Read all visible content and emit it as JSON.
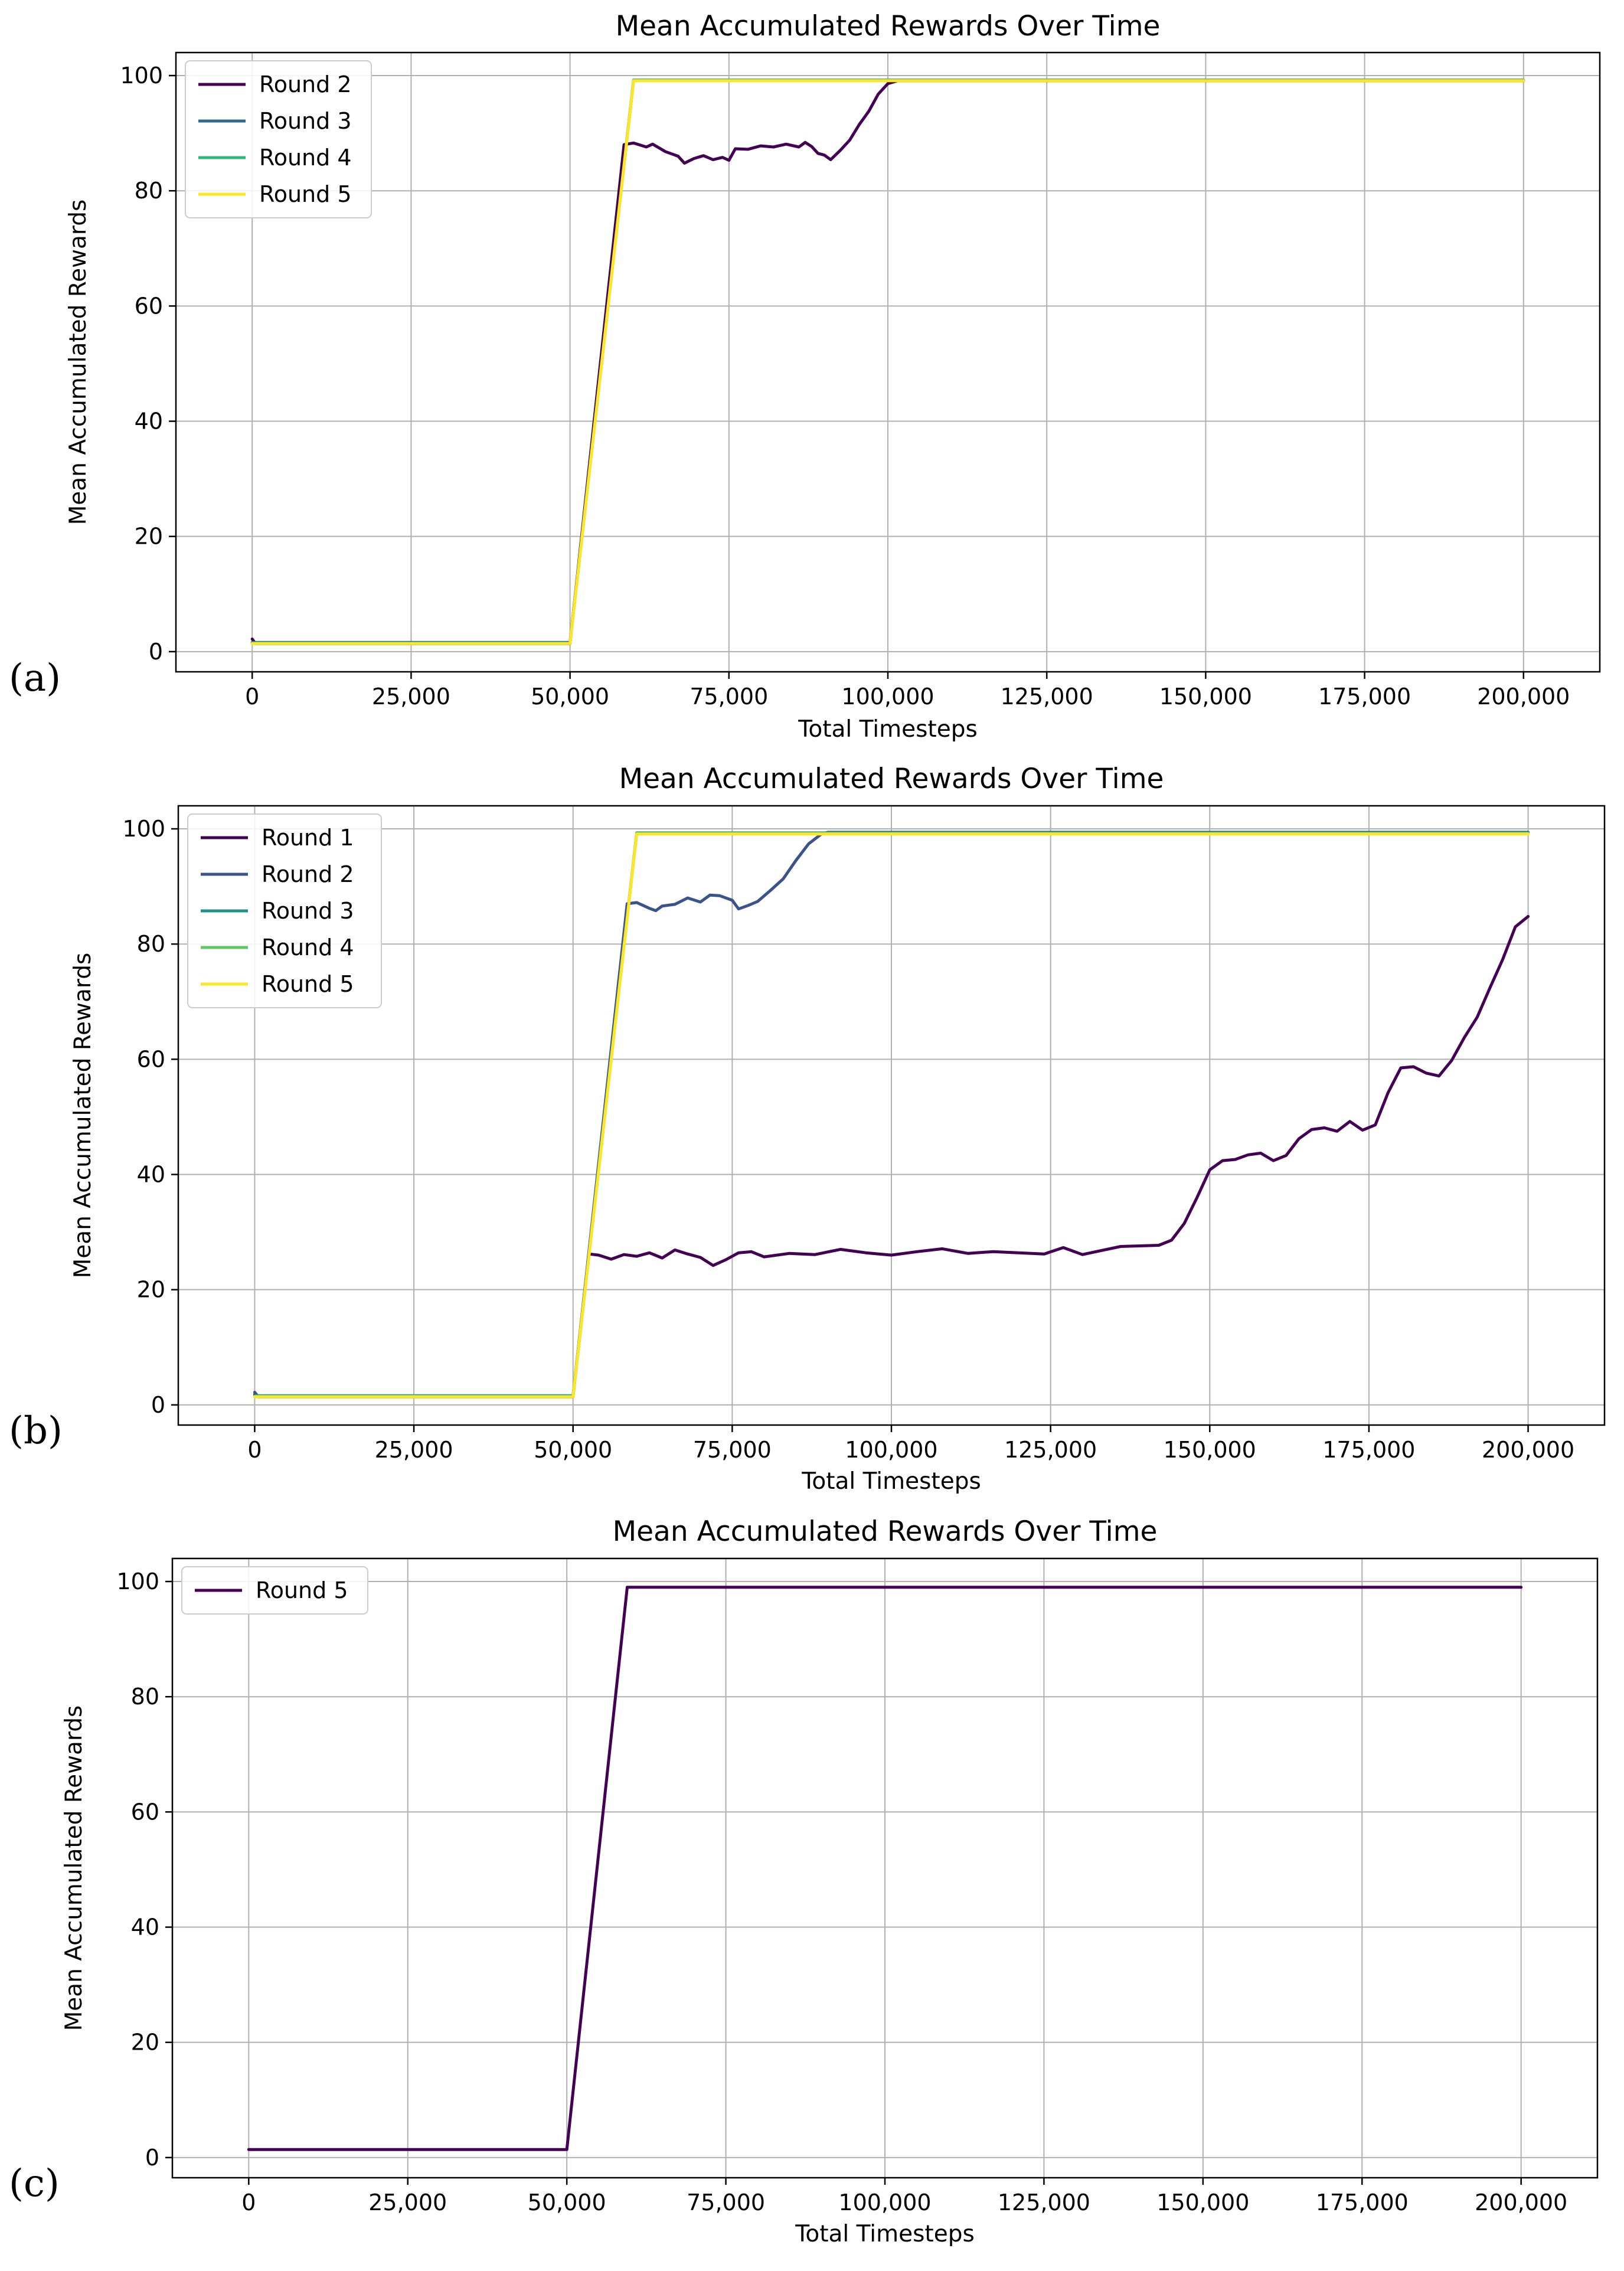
{
  "chart_data": [
    {
      "panel_label": "(a)",
      "type": "line",
      "title": "Mean Accumulated Rewards Over Time",
      "xlabel": "Total Timesteps",
      "ylabel": "Mean Accumulated Rewards",
      "xlim": [
        -12000,
        212000
      ],
      "ylim": [
        -3.5,
        104
      ],
      "xticks": [
        0,
        25000,
        50000,
        75000,
        100000,
        125000,
        150000,
        175000,
        200000
      ],
      "xtick_labels": [
        "0",
        "25,000",
        "50,000",
        "75,000",
        "100,000",
        "125,000",
        "150,000",
        "175,000",
        "200,000"
      ],
      "yticks": [
        0,
        20,
        40,
        60,
        80,
        100
      ],
      "ytick_labels": [
        "0",
        "20",
        "40",
        "60",
        "80",
        "100"
      ],
      "grid": true,
      "legend_position": "top-left",
      "series": [
        {
          "name": "Round 2",
          "color": "#440154",
          "points": [
            [
              0,
              2.2
            ],
            [
              500,
              1.4
            ],
            [
              50000,
              1.4
            ],
            [
              58500,
              88
            ],
            [
              60000,
              88.3
            ],
            [
              62000,
              87.6
            ],
            [
              63000,
              88.1
            ],
            [
              65000,
              86.8
            ],
            [
              67000,
              86
            ],
            [
              68000,
              84.8
            ],
            [
              69500,
              85.6
            ],
            [
              71000,
              86.1
            ],
            [
              72500,
              85.4
            ],
            [
              74000,
              85.8
            ],
            [
              75000,
              85.3
            ],
            [
              76000,
              87.3
            ],
            [
              78000,
              87.2
            ],
            [
              80000,
              87.8
            ],
            [
              82000,
              87.6
            ],
            [
              84000,
              88.1
            ],
            [
              86000,
              87.6
            ],
            [
              87000,
              88.4
            ],
            [
              88000,
              87.7
            ],
            [
              89000,
              86.5
            ],
            [
              90000,
              86.2
            ],
            [
              91000,
              85.4
            ],
            [
              92500,
              87
            ],
            [
              94000,
              88.8
            ],
            [
              95500,
              91.5
            ],
            [
              97000,
              93.8
            ],
            [
              98500,
              96.8
            ],
            [
              100000,
              98.6
            ],
            [
              101500,
              99.1
            ],
            [
              200000,
              99.1
            ]
          ]
        },
        {
          "name": "Round 3",
          "color": "#31688e",
          "points": [
            [
              0,
              1.6
            ],
            [
              50000,
              1.6
            ],
            [
              60000,
              99.2
            ],
            [
              200000,
              99.2
            ]
          ]
        },
        {
          "name": "Round 4",
          "color": "#35b779",
          "points": [
            [
              0,
              1.5
            ],
            [
              50000,
              1.5
            ],
            [
              60000,
              99.2
            ],
            [
              200000,
              99.2
            ]
          ]
        },
        {
          "name": "Round 5",
          "color": "#fde725",
          "points": [
            [
              0,
              1.4
            ],
            [
              50000,
              1.4
            ],
            [
              60000,
              99.1
            ],
            [
              200000,
              99.1
            ]
          ]
        }
      ]
    },
    {
      "panel_label": "(b)",
      "type": "line",
      "title": "Mean Accumulated Rewards Over Time",
      "xlabel": "Total Timesteps",
      "ylabel": "Mean Accumulated Rewards",
      "xlim": [
        -12000,
        212000
      ],
      "ylim": [
        -3.5,
        104
      ],
      "xticks": [
        0,
        25000,
        50000,
        75000,
        100000,
        125000,
        150000,
        175000,
        200000
      ],
      "xtick_labels": [
        "0",
        "25,000",
        "50,000",
        "75,000",
        "100,000",
        "125,000",
        "150,000",
        "175,000",
        "200,000"
      ],
      "yticks": [
        0,
        20,
        40,
        60,
        80,
        100
      ],
      "ytick_labels": [
        "0",
        "20",
        "40",
        "60",
        "80",
        "100"
      ],
      "grid": true,
      "legend_position": "top-left",
      "series": [
        {
          "name": "Round 1",
          "color": "#440154",
          "points": [
            [
              0,
              1.8
            ],
            [
              500,
              1.4
            ],
            [
              50000,
              1.4
            ],
            [
              52500,
              26.2
            ],
            [
              54000,
              26
            ],
            [
              56000,
              25.3
            ],
            [
              58000,
              26.1
            ],
            [
              60000,
              25.8
            ],
            [
              62000,
              26.4
            ],
            [
              64000,
              25.5
            ],
            [
              66000,
              26.9
            ],
            [
              68000,
              26.2
            ],
            [
              70000,
              25.6
            ],
            [
              72000,
              24.2
            ],
            [
              74000,
              25.2
            ],
            [
              76000,
              26.4
            ],
            [
              78000,
              26.6
            ],
            [
              80000,
              25.7
            ],
            [
              84000,
              26.3
            ],
            [
              88000,
              26.1
            ],
            [
              92000,
              27
            ],
            [
              96000,
              26.4
            ],
            [
              100000,
              26
            ],
            [
              104000,
              26.6
            ],
            [
              108000,
              27.1
            ],
            [
              112000,
              26.3
            ],
            [
              116000,
              26.6
            ],
            [
              120000,
              26.4
            ],
            [
              124000,
              26.2
            ],
            [
              127000,
              27.3
            ],
            [
              130000,
              26.1
            ],
            [
              133000,
              26.8
            ],
            [
              136000,
              27.5
            ],
            [
              139000,
              27.6
            ],
            [
              142000,
              27.7
            ],
            [
              144000,
              28.6
            ],
            [
              146000,
              31.5
            ],
            [
              148000,
              36
            ],
            [
              150000,
              40.8
            ],
            [
              152000,
              42.4
            ],
            [
              154000,
              42.6
            ],
            [
              156000,
              43.4
            ],
            [
              158000,
              43.7
            ],
            [
              160000,
              42.4
            ],
            [
              162000,
              43.3
            ],
            [
              164000,
              46.2
            ],
            [
              166000,
              47.8
            ],
            [
              168000,
              48.1
            ],
            [
              170000,
              47.5
            ],
            [
              172000,
              49.2
            ],
            [
              174000,
              47.7
            ],
            [
              176000,
              48.6
            ],
            [
              178000,
              54.2
            ],
            [
              180000,
              58.5
            ],
            [
              182000,
              58.7
            ],
            [
              184000,
              57.6
            ],
            [
              186000,
              57.1
            ],
            [
              188000,
              59.8
            ],
            [
              190000,
              63.8
            ],
            [
              192000,
              67.3
            ],
            [
              194000,
              72.4
            ],
            [
              196000,
              77.3
            ],
            [
              198000,
              83
            ],
            [
              200000,
              84.8
            ]
          ]
        },
        {
          "name": "Round 2",
          "color": "#3b528b",
          "points": [
            [
              0,
              2.2
            ],
            [
              500,
              1.5
            ],
            [
              50000,
              1.5
            ],
            [
              58500,
              87
            ],
            [
              60000,
              87.2
            ],
            [
              62000,
              86.2
            ],
            [
              63000,
              85.8
            ],
            [
              64000,
              86.6
            ],
            [
              66000,
              86.9
            ],
            [
              68000,
              88
            ],
            [
              70000,
              87.3
            ],
            [
              71500,
              88.5
            ],
            [
              73000,
              88.4
            ],
            [
              75000,
              87.6
            ],
            [
              76000,
              86.1
            ],
            [
              77500,
              86.7
            ],
            [
              79000,
              87.4
            ],
            [
              81000,
              89.3
            ],
            [
              83000,
              91.3
            ],
            [
              85000,
              94.5
            ],
            [
              87000,
              97.4
            ],
            [
              89000,
              99.1
            ],
            [
              90000,
              99.4
            ],
            [
              200000,
              99.4
            ]
          ]
        },
        {
          "name": "Round 3",
          "color": "#21918c",
          "points": [
            [
              0,
              1.6
            ],
            [
              50000,
              1.6
            ],
            [
              60000,
              99.3
            ],
            [
              200000,
              99.3
            ]
          ]
        },
        {
          "name": "Round 4",
          "color": "#5ec962",
          "points": [
            [
              0,
              1.5
            ],
            [
              50000,
              1.5
            ],
            [
              60000,
              99.2
            ],
            [
              200000,
              99.2
            ]
          ]
        },
        {
          "name": "Round 5",
          "color": "#fde725",
          "points": [
            [
              0,
              1.4
            ],
            [
              50000,
              1.4
            ],
            [
              60000,
              99.1
            ],
            [
              200000,
              99.1
            ]
          ]
        }
      ]
    },
    {
      "panel_label": "(c)",
      "type": "line",
      "title": "Mean Accumulated Rewards Over Time",
      "xlabel": "Total Timesteps",
      "ylabel": "Mean Accumulated Rewards",
      "xlim": [
        -12000,
        212000
      ],
      "ylim": [
        -3.5,
        104
      ],
      "xticks": [
        0,
        25000,
        50000,
        75000,
        100000,
        125000,
        150000,
        175000,
        200000
      ],
      "xtick_labels": [
        "0",
        "25,000",
        "50,000",
        "75,000",
        "100,000",
        "125,000",
        "150,000",
        "175,000",
        "200,000"
      ],
      "yticks": [
        0,
        20,
        40,
        60,
        80,
        100
      ],
      "ytick_labels": [
        "0",
        "20",
        "40",
        "60",
        "80",
        "100"
      ],
      "grid": true,
      "legend_position": "top-left",
      "series": [
        {
          "name": "Round 5",
          "color": "#440154",
          "points": [
            [
              0,
              1.4
            ],
            [
              50000,
              1.4
            ],
            [
              59500,
              99
            ],
            [
              200000,
              99
            ]
          ]
        }
      ]
    }
  ]
}
